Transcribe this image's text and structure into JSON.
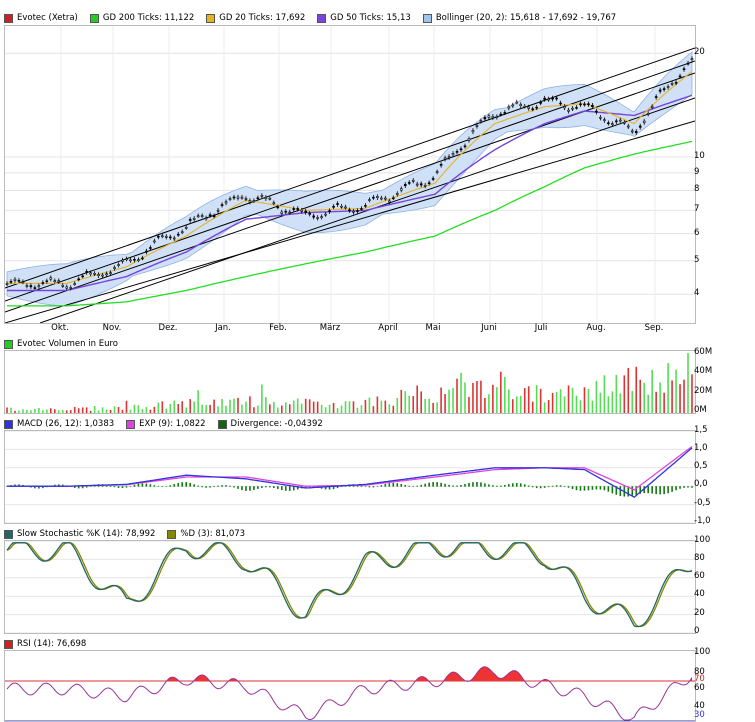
{
  "main": {
    "legend": [
      {
        "label": "Evotec (Xetra)",
        "color": "#cc2222"
      },
      {
        "label": "GD 200 Ticks: 11,122",
        "color": "#22cc22"
      },
      {
        "label": "GD 20 Ticks: 17,692",
        "color": "#e6b422"
      },
      {
        "label": "GD 50 Ticks: 15,13",
        "color": "#7744dd"
      },
      {
        "label": "Bollinger (20, 2): 15,618 - 17,692 - 19,767",
        "color": "#9fc4ee"
      }
    ],
    "yticks": [
      "20",
      "10",
      "9",
      "8",
      "7",
      "6",
      "5",
      "4"
    ],
    "months": [
      "Okt.",
      "Nov.",
      "Dez.",
      "Jan.",
      "Feb.",
      "März",
      "April",
      "Mai",
      "Juni",
      "Juli",
      "Aug.",
      "Sep."
    ]
  },
  "volume": {
    "legend": [
      {
        "label": "Evotec Volumen in Euro",
        "color": "#22cc22"
      }
    ],
    "yticks": [
      "60M",
      "40M",
      "20M",
      "0M"
    ]
  },
  "macd": {
    "legend": [
      {
        "label": "MACD (26, 12): 1,0383",
        "color": "#3333dd"
      },
      {
        "label": "EXP (9): 1,0822",
        "color": "#dd44dd"
      },
      {
        "label": "Divergence: -0,04392",
        "color": "#116611"
      }
    ],
    "yticks": [
      "1,5",
      "1,0",
      "0,5",
      "0,0",
      "-0,5",
      "-1,0"
    ]
  },
  "stoch": {
    "legend": [
      {
        "label": "Slow Stochastic %K (14): 78,992",
        "color": "#226666"
      },
      {
        "label": "%D (3): 81,073",
        "color": "#888800"
      }
    ],
    "yticks": [
      "100",
      "80",
      "60",
      "40",
      "20",
      "0"
    ]
  },
  "rsi": {
    "legend": [
      {
        "label": "RSI (14): 76,698",
        "color": "#cc2222"
      }
    ],
    "yticks": [
      "100",
      "80",
      "70",
      "60",
      "40",
      "30"
    ]
  },
  "chart_data": [
    {
      "type": "line",
      "title": "Evotec (Xetra)",
      "scale": "log",
      "ylim": [
        3.3,
        24
      ],
      "x": [
        "Okt.",
        "Nov.",
        "Dez.",
        "Jan.",
        "Feb.",
        "März",
        "April",
        "Mai",
        "Juni",
        "Juli",
        "Aug.",
        "Sep."
      ],
      "series": [
        {
          "name": "Evotec (Xetra)",
          "values": [
            4.3,
            4.9,
            6.3,
            7.8,
            6.8,
            7.2,
            8.8,
            13.5,
            14.5,
            14.0,
            11.8,
            19.0
          ]
        },
        {
          "name": "GD 200 Ticks: 11,122",
          "values": [
            3.7,
            3.8,
            4.1,
            4.5,
            4.9,
            5.3,
            5.9,
            7.0,
            8.2,
            9.3,
            10.2,
            11.1
          ]
        },
        {
          "name": "GD 20 Ticks: 17,692",
          "values": [
            4.3,
            4.8,
            5.9,
            7.5,
            7.0,
            7.1,
            8.4,
            12.5,
            14.0,
            14.3,
            12.5,
            17.7
          ]
        },
        {
          "name": "GD 50 Ticks: 15,13",
          "values": [
            4.1,
            4.5,
            5.3,
            6.6,
            6.9,
            7.0,
            7.8,
            10.5,
            12.5,
            13.6,
            13.2,
            15.1
          ]
        }
      ]
    },
    {
      "type": "bar",
      "title": "Evotec Volumen in Euro",
      "ylim": [
        0,
        60
      ],
      "x": [
        "Okt.",
        "Nov.",
        "Dez.",
        "Jan.",
        "Feb.",
        "März",
        "April",
        "Mai",
        "Juni",
        "Juli",
        "Aug.",
        "Sep."
      ],
      "values": [
        4,
        5,
        9,
        11,
        9,
        10,
        20,
        26,
        16,
        20,
        30,
        28
      ]
    },
    {
      "type": "line",
      "title": "MACD",
      "ylim": [
        -1.0,
        1.5
      ],
      "series": [
        {
          "name": "MACD (26, 12): 1,0383",
          "values": [
            0.0,
            0.05,
            0.3,
            0.2,
            -0.05,
            0.05,
            0.3,
            0.5,
            0.5,
            0.45,
            -0.3,
            1.04
          ]
        },
        {
          "name": "EXP (9): 1,0822",
          "values": [
            0.0,
            0.04,
            0.25,
            0.25,
            0.0,
            0.03,
            0.25,
            0.45,
            0.5,
            0.5,
            -0.1,
            1.08
          ]
        }
      ]
    },
    {
      "type": "line",
      "title": "Slow Stochastic",
      "ylim": [
        0,
        100
      ],
      "series": [
        {
          "name": "Slow Stochastic %K (14): 78,992",
          "values": [
            90,
            30,
            95,
            80,
            20,
            75,
            95,
            92,
            85,
            40,
            10,
            79
          ]
        },
        {
          "name": "%D (3): 81,073",
          "values": [
            88,
            35,
            92,
            82,
            25,
            72,
            92,
            93,
            85,
            45,
            12,
            81
          ]
        }
      ]
    },
    {
      "type": "area",
      "title": "RSI (14)",
      "ylim": [
        30,
        100
      ],
      "series": [
        {
          "name": "RSI (14): 76,698",
          "values": [
            62,
            55,
            72,
            65,
            35,
            62,
            70,
            80,
            66,
            55,
            32,
            77
          ]
        }
      ]
    }
  ]
}
